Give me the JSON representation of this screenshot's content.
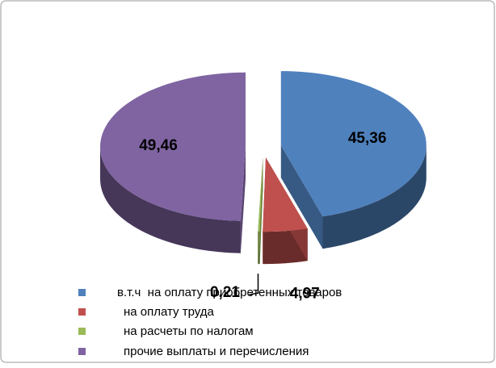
{
  "chart_data": {
    "type": "pie",
    "categories": [
      "в.т.ч  на оплату приобретенных товаров",
      "на оплату труда",
      "на расчеты по налогам",
      "прочие выплаты и перечисления"
    ],
    "values": [
      45.36,
      4.97,
      0.21,
      49.46
    ],
    "value_labels": [
      "45,36",
      "4,97",
      "0,21",
      "49,46"
    ],
    "colors": [
      "#4f81bd",
      "#c0504d",
      "#9bbb59",
      "#8064a2"
    ],
    "legend": "bottom"
  }
}
